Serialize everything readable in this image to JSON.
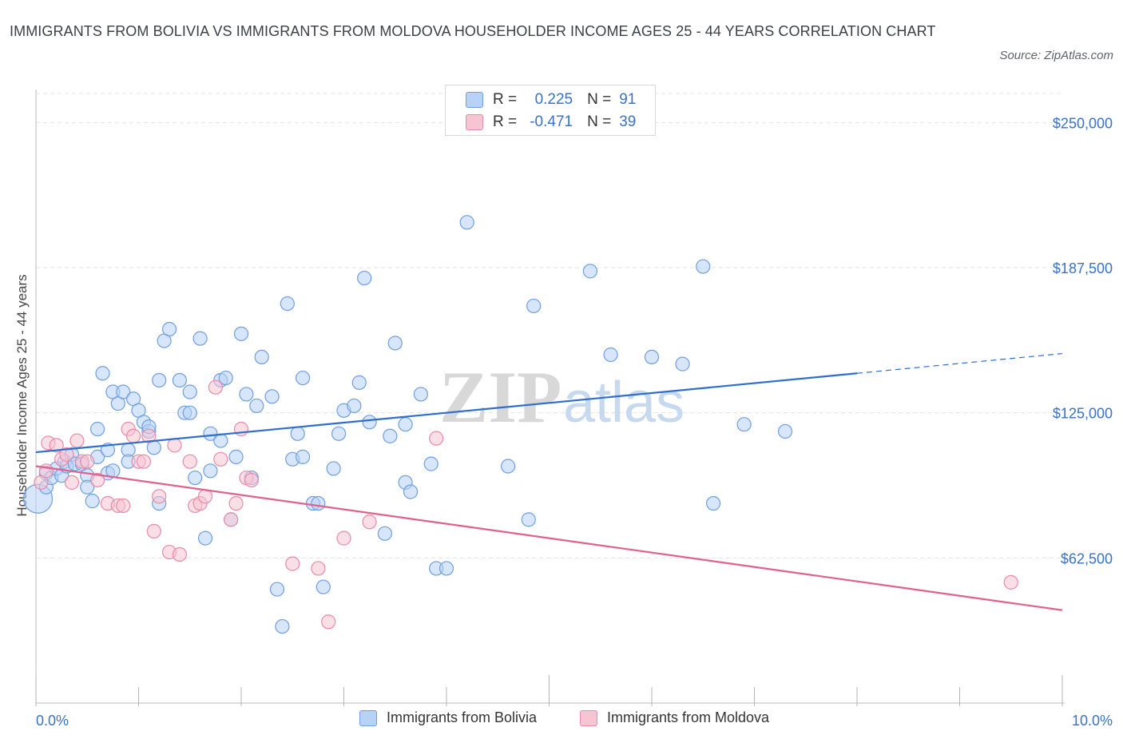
{
  "title": "IMMIGRANTS FROM BOLIVIA VS IMMIGRANTS FROM MOLDOVA HOUSEHOLDER INCOME AGES 25 - 44 YEARS CORRELATION CHART",
  "source": "Source: ZipAtlas.com",
  "watermark": {
    "zip": "ZIP",
    "atlas": "atlas"
  },
  "legend": {
    "r_label": "R =",
    "n_label": "N =",
    "series": [
      {
        "name": "Immigrants from Bolivia",
        "r": "0.225",
        "n": "91"
      },
      {
        "name": "Immigrants from Moldova",
        "r": "-0.471",
        "n": "39"
      }
    ]
  },
  "colors": {
    "bolivia_fill": "#b7d2f5",
    "bolivia_stroke": "#6f9fe0",
    "bolivia_line": "#2f6ecb",
    "moldova_fill": "#f7c4d4",
    "moldova_stroke": "#e88aaa",
    "moldova_line": "#e0608e",
    "tick_text": "#3a72c4",
    "grid": "#e3e3e3"
  },
  "chart_data": {
    "type": "scatter",
    "title": "IMMIGRANTS FROM BOLIVIA VS IMMIGRANTS FROM MOLDOVA HOUSEHOLDER INCOME AGES 25 - 44 YEARS CORRELATION CHART",
    "xlabel": "",
    "ylabel": "Householder Income Ages 25 - 44 years",
    "xlim": [
      0,
      10
    ],
    "ylim": [
      0,
      262500
    ],
    "x_tick_labels": [
      "0.0%",
      "10.0%"
    ],
    "y_ticks": [
      62500,
      125000,
      187500,
      250000
    ],
    "y_tick_labels": [
      "$62,500",
      "$125,000",
      "$187,500",
      "$250,000"
    ],
    "grid": true,
    "legend_position": "top-center",
    "series": [
      {
        "name": "Immigrants from Bolivia",
        "trendline": {
          "x": [
            0,
            8.0,
            10.0
          ],
          "y": [
            108000,
            142000,
            150500
          ],
          "solid_until_x": 8.0
        },
        "points": [
          {
            "x": 0.02,
            "y": 88000,
            "large": true
          },
          {
            "x": 0.1,
            "y": 93000
          },
          {
            "x": 0.1,
            "y": 99000
          },
          {
            "x": 0.15,
            "y": 97000
          },
          {
            "x": 0.2,
            "y": 101000
          },
          {
            "x": 0.25,
            "y": 98000
          },
          {
            "x": 0.28,
            "y": 104000
          },
          {
            "x": 0.3,
            "y": 102000
          },
          {
            "x": 0.35,
            "y": 107000
          },
          {
            "x": 0.38,
            "y": 103000
          },
          {
            "x": 0.45,
            "y": 103000
          },
          {
            "x": 0.5,
            "y": 98000
          },
          {
            "x": 0.55,
            "y": 87000
          },
          {
            "x": 0.6,
            "y": 106000
          },
          {
            "x": 0.5,
            "y": 93000
          },
          {
            "x": 0.7,
            "y": 99000
          },
          {
            "x": 0.75,
            "y": 100000
          },
          {
            "x": 0.6,
            "y": 118000
          },
          {
            "x": 0.65,
            "y": 142000
          },
          {
            "x": 0.7,
            "y": 109000
          },
          {
            "x": 0.75,
            "y": 134000
          },
          {
            "x": 0.8,
            "y": 129000
          },
          {
            "x": 0.85,
            "y": 134000
          },
          {
            "x": 0.9,
            "y": 109000
          },
          {
            "x": 0.9,
            "y": 104000
          },
          {
            "x": 0.95,
            "y": 131000
          },
          {
            "x": 1.0,
            "y": 126000
          },
          {
            "x": 1.05,
            "y": 121000
          },
          {
            "x": 1.1,
            "y": 117000
          },
          {
            "x": 1.1,
            "y": 119000
          },
          {
            "x": 1.15,
            "y": 110000
          },
          {
            "x": 1.2,
            "y": 139000
          },
          {
            "x": 1.25,
            "y": 156000
          },
          {
            "x": 1.3,
            "y": 161000
          },
          {
            "x": 1.2,
            "y": 86000
          },
          {
            "x": 1.4,
            "y": 139000
          },
          {
            "x": 1.45,
            "y": 125000
          },
          {
            "x": 1.5,
            "y": 125000
          },
          {
            "x": 1.5,
            "y": 134000
          },
          {
            "x": 1.55,
            "y": 97000
          },
          {
            "x": 1.6,
            "y": 157000
          },
          {
            "x": 1.65,
            "y": 71000
          },
          {
            "x": 1.7,
            "y": 100000
          },
          {
            "x": 1.7,
            "y": 116000
          },
          {
            "x": 1.8,
            "y": 113000
          },
          {
            "x": 1.8,
            "y": 139000
          },
          {
            "x": 1.85,
            "y": 140000
          },
          {
            "x": 1.9,
            "y": 79000
          },
          {
            "x": 1.95,
            "y": 106000
          },
          {
            "x": 2.0,
            "y": 159000
          },
          {
            "x": 2.05,
            "y": 133000
          },
          {
            "x": 2.1,
            "y": 97000
          },
          {
            "x": 2.15,
            "y": 128000
          },
          {
            "x": 2.2,
            "y": 149000
          },
          {
            "x": 2.3,
            "y": 132000
          },
          {
            "x": 2.35,
            "y": 49000
          },
          {
            "x": 2.4,
            "y": 33000
          },
          {
            "x": 2.45,
            "y": 172000
          },
          {
            "x": 2.5,
            "y": 105000
          },
          {
            "x": 2.55,
            "y": 116000
          },
          {
            "x": 2.6,
            "y": 106000
          },
          {
            "x": 2.6,
            "y": 140000
          },
          {
            "x": 2.7,
            "y": 86000
          },
          {
            "x": 2.75,
            "y": 86000
          },
          {
            "x": 2.8,
            "y": 50000
          },
          {
            "x": 2.9,
            "y": 101000
          },
          {
            "x": 2.95,
            "y": 116000
          },
          {
            "x": 3.0,
            "y": 126000
          },
          {
            "x": 3.1,
            "y": 128000
          },
          {
            "x": 3.15,
            "y": 138000
          },
          {
            "x": 3.2,
            "y": 183000
          },
          {
            "x": 3.25,
            "y": 121000
          },
          {
            "x": 3.4,
            "y": 73000
          },
          {
            "x": 3.45,
            "y": 115000
          },
          {
            "x": 3.5,
            "y": 155000
          },
          {
            "x": 3.6,
            "y": 95000
          },
          {
            "x": 3.65,
            "y": 91000
          },
          {
            "x": 3.6,
            "y": 120000
          },
          {
            "x": 3.75,
            "y": 133000
          },
          {
            "x": 3.85,
            "y": 103000
          },
          {
            "x": 3.9,
            "y": 58000
          },
          {
            "x": 4.0,
            "y": 58000
          },
          {
            "x": 4.2,
            "y": 207000
          },
          {
            "x": 4.6,
            "y": 102000
          },
          {
            "x": 4.8,
            "y": 79000
          },
          {
            "x": 4.85,
            "y": 171000
          },
          {
            "x": 5.4,
            "y": 186000
          },
          {
            "x": 5.6,
            "y": 150000
          },
          {
            "x": 6.0,
            "y": 149000
          },
          {
            "x": 6.3,
            "y": 146000
          },
          {
            "x": 6.5,
            "y": 188000
          },
          {
            "x": 6.6,
            "y": 86000
          },
          {
            "x": 6.9,
            "y": 120000
          },
          {
            "x": 7.3,
            "y": 117000
          }
        ]
      },
      {
        "name": "Immigrants from Moldova",
        "trendline": {
          "x": [
            0,
            10.0
          ],
          "y": [
            102000,
            40000
          ]
        },
        "points": [
          {
            "x": 0.05,
            "y": 95000
          },
          {
            "x": 0.1,
            "y": 100000
          },
          {
            "x": 0.12,
            "y": 112000
          },
          {
            "x": 0.2,
            "y": 111000
          },
          {
            "x": 0.25,
            "y": 105000
          },
          {
            "x": 0.3,
            "y": 107000
          },
          {
            "x": 0.35,
            "y": 95000
          },
          {
            "x": 0.4,
            "y": 113000
          },
          {
            "x": 0.45,
            "y": 104000
          },
          {
            "x": 0.5,
            "y": 104000
          },
          {
            "x": 0.6,
            "y": 96000
          },
          {
            "x": 0.7,
            "y": 86000
          },
          {
            "x": 0.8,
            "y": 85000
          },
          {
            "x": 0.85,
            "y": 85000
          },
          {
            "x": 0.9,
            "y": 118000
          },
          {
            "x": 0.95,
            "y": 115000
          },
          {
            "x": 1.0,
            "y": 104000
          },
          {
            "x": 1.05,
            "y": 104000
          },
          {
            "x": 1.1,
            "y": 115000
          },
          {
            "x": 1.15,
            "y": 74000
          },
          {
            "x": 1.2,
            "y": 89000
          },
          {
            "x": 1.3,
            "y": 65000
          },
          {
            "x": 1.35,
            "y": 111000
          },
          {
            "x": 1.4,
            "y": 64000
          },
          {
            "x": 1.5,
            "y": 104000
          },
          {
            "x": 1.55,
            "y": 85000
          },
          {
            "x": 1.6,
            "y": 86000
          },
          {
            "x": 1.65,
            "y": 89000
          },
          {
            "x": 1.75,
            "y": 136000
          },
          {
            "x": 1.8,
            "y": 105000
          },
          {
            "x": 1.9,
            "y": 79000
          },
          {
            "x": 1.95,
            "y": 86000
          },
          {
            "x": 2.0,
            "y": 118000
          },
          {
            "x": 2.05,
            "y": 97000
          },
          {
            "x": 2.1,
            "y": 96000
          },
          {
            "x": 2.5,
            "y": 60000
          },
          {
            "x": 2.75,
            "y": 58000
          },
          {
            "x": 2.85,
            "y": 35000
          },
          {
            "x": 3.0,
            "y": 71000
          },
          {
            "x": 3.25,
            "y": 78000
          },
          {
            "x": 3.9,
            "y": 114000
          },
          {
            "x": 9.5,
            "y": 52000
          }
        ]
      }
    ]
  }
}
